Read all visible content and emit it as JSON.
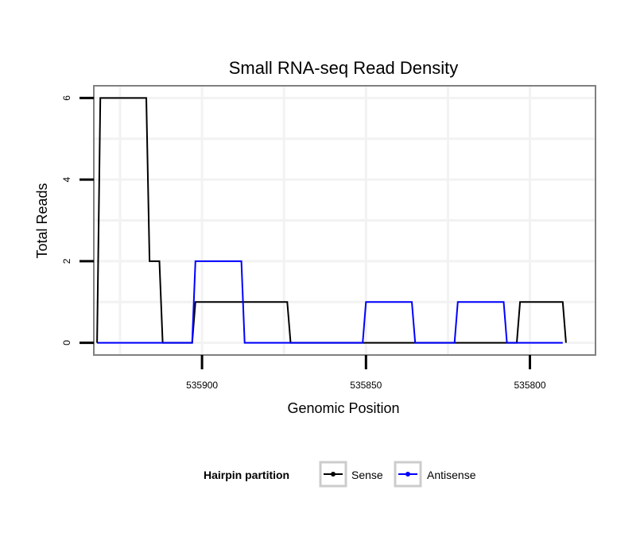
{
  "chart_data": {
    "type": "line",
    "title": "Small RNA-seq Read Density",
    "xlabel": "Genomic Position",
    "ylabel": "Total Reads",
    "x_reversed": true,
    "xlim": [
      535933,
      535780
    ],
    "ylim": [
      -0.3,
      6.3
    ],
    "x_ticks": [
      535900,
      535850,
      535800
    ],
    "x_tick_labels": [
      "535900",
      "535850",
      "535800"
    ],
    "y_ticks": [
      0,
      2,
      4,
      6
    ],
    "y_tick_labels": [
      "0",
      "2",
      "4",
      "6"
    ],
    "grid": true,
    "legend": {
      "title": "Hairpin partition",
      "position": "bottom",
      "entries": [
        "Sense",
        "Antisense"
      ]
    },
    "series": [
      {
        "name": "Sense",
        "color": "#000000",
        "x": [
          535932,
          535931,
          535917,
          535916,
          535915,
          535913,
          535912,
          535903,
          535902,
          535874,
          535873,
          535804,
          535803,
          535790,
          535789
        ],
        "y": [
          0,
          6,
          6,
          2,
          2,
          2,
          0,
          0,
          1,
          1,
          0,
          0,
          1,
          1,
          0
        ]
      },
      {
        "name": "Antisense",
        "color": "#0000ff",
        "x": [
          535932,
          535903,
          535902,
          535888,
          535887,
          535851,
          535850,
          535836,
          535835,
          535823,
          535822,
          535808,
          535807,
          535790
        ],
        "y": [
          0,
          0,
          2,
          2,
          0,
          0,
          1,
          1,
          0,
          0,
          1,
          1,
          0,
          0
        ]
      }
    ]
  }
}
